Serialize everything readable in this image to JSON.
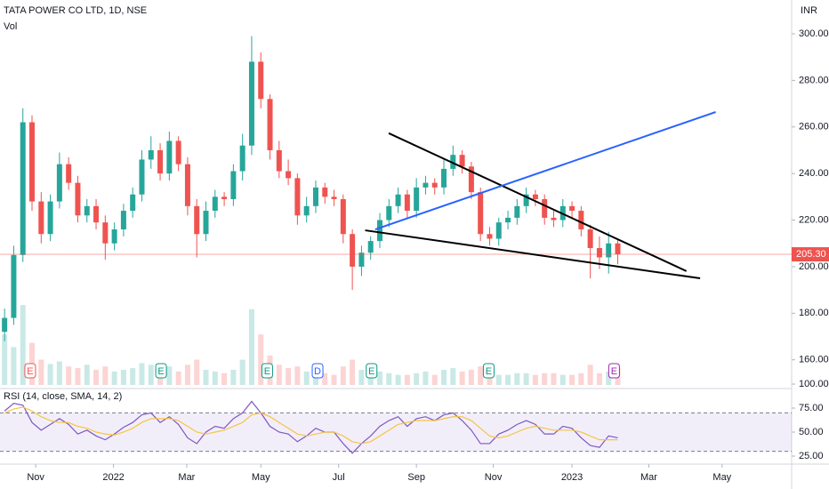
{
  "chart_data": {
    "type": "candlestick",
    "title": "TATA POWER CO LTD, 1D, NSE",
    "volume_label": "Vol",
    "currency": "INR",
    "up_color": "#26a69a",
    "down_color": "#ef5350",
    "xlim": [
      -0.5,
      86
    ],
    "xticks": [
      {
        "value": 3.4,
        "label": "Nov"
      },
      {
        "value": 11.9,
        "label": "2022"
      },
      {
        "value": 19.9,
        "label": "Mar"
      },
      {
        "value": 28.0,
        "label": "May"
      },
      {
        "value": 36.5,
        "label": "Jul"
      },
      {
        "value": 45.0,
        "label": "Sep"
      },
      {
        "value": 53.4,
        "label": "Nov"
      },
      {
        "value": 62.0,
        "label": "2023"
      },
      {
        "value": 70.4,
        "label": "Mar"
      },
      {
        "value": 78.4,
        "label": "May"
      }
    ],
    "ylim": [
      149.2,
      314.5
    ],
    "yticks": [
      {
        "value": 160,
        "label": "160.00"
      },
      {
        "value": 180,
        "label": "180.00"
      },
      {
        "value": 200,
        "label": "200.00"
      },
      {
        "value": 220,
        "label": "220.00"
      },
      {
        "value": 240,
        "label": "240.00"
      },
      {
        "value": 260,
        "label": "260.00"
      },
      {
        "value": 280,
        "label": "280.00"
      },
      {
        "value": 300,
        "label": "300.00"
      }
    ],
    "open": [
      172,
      178,
      205,
      262,
      228,
      214,
      228,
      244,
      236,
      222,
      226,
      219,
      210,
      216,
      224,
      231,
      246,
      250,
      240,
      254,
      244,
      226,
      214,
      224,
      230,
      229,
      241,
      252,
      288,
      272,
      250,
      241,
      238,
      222,
      226,
      234,
      230,
      229,
      214,
      200,
      206,
      211,
      220,
      226,
      231,
      224,
      234,
      236,
      234,
      242,
      248,
      243,
      232,
      214,
      212,
      219,
      221,
      226,
      231,
      229,
      221,
      220,
      226,
      224,
      216,
      208,
      204,
      210
    ],
    "high": [
      182,
      209,
      268,
      265,
      232,
      231,
      249,
      247,
      239,
      229,
      229,
      222,
      219,
      227,
      234,
      250,
      256,
      253,
      258,
      256,
      247,
      229,
      228,
      233,
      232,
      244,
      257,
      299,
      292,
      274,
      254,
      246,
      240,
      230,
      237,
      236,
      233,
      231,
      216,
      209,
      213,
      223,
      229,
      234,
      233,
      238,
      239,
      238,
      246,
      252,
      250,
      245,
      234,
      217,
      221,
      224,
      229,
      234,
      233,
      231,
      224,
      229,
      228,
      226,
      218,
      213,
      215,
      212
    ],
    "low": [
      168,
      175,
      202,
      224,
      210,
      211,
      225,
      233,
      219,
      219,
      216,
      203,
      207,
      213,
      221,
      228,
      242,
      237,
      237,
      241,
      222,
      204,
      211,
      221,
      226,
      226,
      237,
      248,
      268,
      246,
      238,
      235,
      218,
      219,
      223,
      227,
      226,
      210,
      190,
      196,
      203,
      208,
      217,
      223,
      221,
      221,
      231,
      231,
      231,
      239,
      240,
      229,
      211,
      209,
      209,
      216,
      218,
      223,
      226,
      218,
      217,
      217,
      221,
      213,
      195,
      199,
      197,
      201
    ],
    "close": [
      178,
      205,
      262,
      228,
      214,
      228,
      244,
      236,
      222,
      226,
      219,
      210,
      216,
      224,
      231,
      246,
      250,
      240,
      254,
      244,
      226,
      214,
      224,
      230,
      229,
      241,
      252,
      288,
      272,
      250,
      241,
      238,
      222,
      226,
      234,
      230,
      229,
      214,
      200,
      206,
      211,
      220,
      226,
      231,
      224,
      234,
      236,
      234,
      242,
      248,
      243,
      232,
      214,
      212,
      219,
      221,
      226,
      231,
      229,
      221,
      220,
      226,
      224,
      216,
      208,
      204,
      210,
      205.3
    ],
    "volume": [
      60,
      45,
      95,
      50,
      30,
      25,
      28,
      22,
      20,
      24,
      18,
      22,
      16,
      18,
      20,
      26,
      24,
      18,
      22,
      16,
      24,
      30,
      18,
      16,
      14,
      18,
      30,
      90,
      60,
      35,
      24,
      20,
      22,
      16,
      14,
      14,
      12,
      22,
      30,
      18,
      14,
      16,
      14,
      12,
      12,
      14,
      16,
      12,
      18,
      20,
      16,
      18,
      22,
      16,
      12,
      12,
      14,
      14,
      12,
      14,
      14,
      12,
      12,
      14,
      24,
      14,
      16,
      20
    ],
    "last_price": {
      "value": 205.3,
      "label": "205.30",
      "color": "#ef5350"
    },
    "drawings": [
      {
        "x": [
          41.97,
          74.5
        ],
        "y": [
          257.3,
          198.1
        ],
        "color": "#000000"
      },
      {
        "x": [
          39.4,
          76.0
        ],
        "y": [
          215.6,
          195.0
        ],
        "color": "#000000"
      },
      {
        "x": [
          40.5,
          77.7
        ],
        "y": [
          216.0,
          266.4
        ],
        "color": "#2962ff"
      }
    ],
    "events": [
      {
        "x": 2.8,
        "label": "E",
        "color": "#ef5350"
      },
      {
        "x": 17.1,
        "label": "E",
        "color": "#089981"
      },
      {
        "x": 28.7,
        "label": "E",
        "color": "#089981"
      },
      {
        "x": 34.2,
        "label": "D",
        "color": "#2962ff"
      },
      {
        "x": 40.1,
        "label": "E",
        "color": "#089981"
      },
      {
        "x": 52.9,
        "label": "E",
        "color": "#089981"
      },
      {
        "x": 66.6,
        "label": "E",
        "color": "#9c27b0"
      }
    ],
    "rsi": {
      "title": "RSI (14, close, SMA, 14, 2)",
      "ylim": [
        18.5,
        92.6
      ],
      "yticks": [
        {
          "value": 25,
          "label": "25.00"
        },
        {
          "value": 50,
          "label": "50.00"
        },
        {
          "value": 75,
          "label": "75.00"
        },
        {
          "value": 100,
          "label": "100.00"
        }
      ],
      "bands": [
        30,
        70
      ],
      "series": [
        {
          "color": "#7e57c2",
          "values": [
            72,
            80,
            78,
            60,
            52,
            58,
            64,
            58,
            48,
            52,
            46,
            42,
            48,
            55,
            60,
            68,
            70,
            60,
            66,
            58,
            44,
            38,
            50,
            56,
            54,
            64,
            70,
            82,
            70,
            56,
            50,
            48,
            40,
            46,
            54,
            50,
            50,
            38,
            28,
            38,
            46,
            56,
            62,
            66,
            56,
            64,
            66,
            62,
            68,
            70,
            62,
            52,
            38,
            38,
            48,
            52,
            58,
            62,
            58,
            48,
            48,
            56,
            54,
            44,
            36,
            34,
            46,
            44
          ]
        },
        {
          "color": "#f5c542",
          "values": [
            70,
            74,
            76,
            72,
            66,
            62,
            60,
            60,
            56,
            54,
            50,
            48,
            47,
            50,
            54,
            60,
            64,
            64,
            64,
            62,
            56,
            50,
            48,
            50,
            52,
            56,
            60,
            68,
            70,
            66,
            60,
            54,
            48,
            46,
            48,
            50,
            50,
            46,
            40,
            38,
            40,
            46,
            52,
            58,
            60,
            62,
            62,
            62,
            64,
            66,
            66,
            62,
            54,
            46,
            44,
            46,
            50,
            54,
            56,
            54,
            52,
            52,
            52,
            50,
            46,
            42,
            42,
            42
          ]
        }
      ]
    }
  }
}
